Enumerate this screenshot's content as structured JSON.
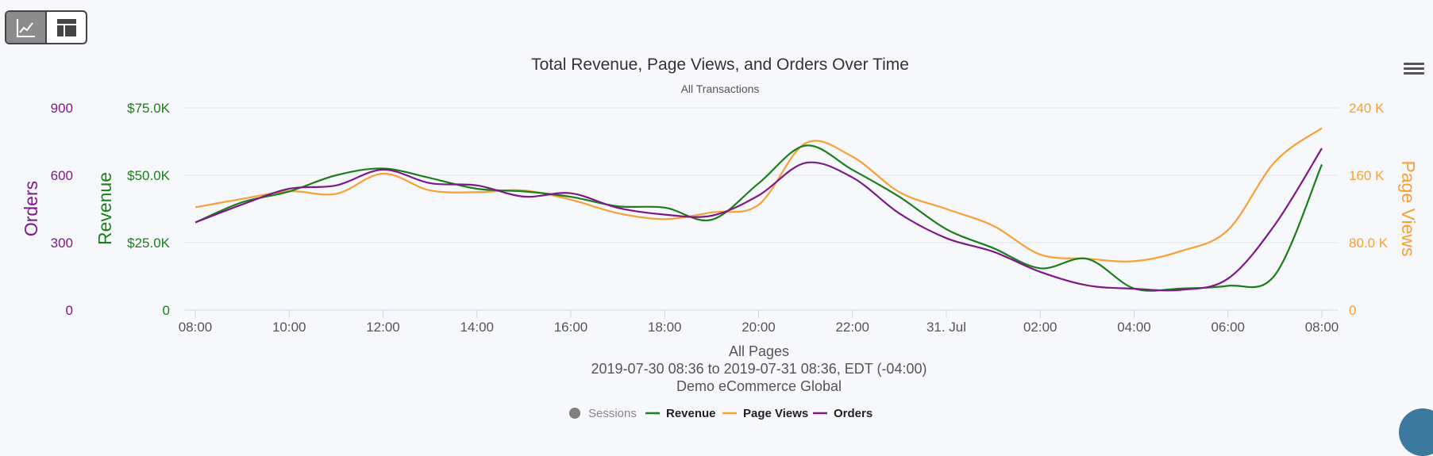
{
  "toolbar": {
    "chart_view_icon": "line-chart-icon",
    "table_view_icon": "table-icon"
  },
  "menu_icon": "hamburger-menu-icon",
  "colors": {
    "revenue": "#1a7f1a",
    "page_views": "#f7a035",
    "orders": "#7d1a86",
    "sessions": "#7f7f7f",
    "grid": "#e1e4ea",
    "text": "#333333"
  },
  "chart_data": {
    "type": "line",
    "title": "Total Revenue, Page Views, and Orders Over Time",
    "subtitle": "All Transactions",
    "caption": [
      "All Pages",
      "2019-07-30 08:36 to 2019-07-31 08:36, EDT (-04:00)",
      "Demo eCommerce Global"
    ],
    "x_ticks": [
      "08:00",
      "10:00",
      "12:00",
      "14:00",
      "16:00",
      "18:00",
      "20:00",
      "22:00",
      "31. Jul",
      "02:00",
      "04:00",
      "06:00",
      "08:00"
    ],
    "x_hours": [
      0,
      1,
      2,
      3,
      4,
      5,
      6,
      7,
      8,
      9,
      10,
      11,
      12,
      13,
      14,
      15,
      16,
      17,
      18,
      19,
      20,
      21,
      22,
      23,
      24
    ],
    "axes": {
      "orders": {
        "title": "Orders",
        "ticks": [
          "0",
          "300",
          "600",
          "900"
        ],
        "range": [
          0,
          900
        ],
        "side": "left"
      },
      "revenue": {
        "title": "Revenue",
        "ticks": [
          "0",
          "$25.0K",
          "$50.0K",
          "$75.0K"
        ],
        "range": [
          0,
          75000
        ],
        "side": "left"
      },
      "page_views": {
        "title": "Page Views",
        "ticks": [
          "0",
          "80.0 K",
          "160 K",
          "240 K"
        ],
        "range": [
          0,
          240000
        ],
        "side": "right"
      }
    },
    "series": [
      {
        "name": "Revenue",
        "axis": "revenue",
        "values": [
          32500,
          40000,
          44000,
          50000,
          52500,
          49000,
          45000,
          44000,
          42000,
          38500,
          38000,
          33500,
          47000,
          61000,
          52000,
          42000,
          30000,
          23000,
          15500,
          19000,
          8000,
          8000,
          9000,
          13000,
          54000
        ]
      },
      {
        "name": "Page Views",
        "axis": "page_views",
        "values": [
          122000,
          132000,
          141000,
          138000,
          162000,
          142000,
          140000,
          142000,
          131000,
          115000,
          108000,
          116000,
          125000,
          198000,
          182000,
          140000,
          120000,
          100000,
          66000,
          61000,
          58000,
          70000,
          95000,
          176000,
          216000
        ]
      },
      {
        "name": "Orders",
        "axis": "orders",
        "values": [
          390,
          470,
          540,
          555,
          625,
          565,
          555,
          505,
          520,
          455,
          425,
          420,
          510,
          655,
          590,
          430,
          320,
          260,
          170,
          110,
          95,
          90,
          140,
          380,
          720
        ]
      },
      {
        "name": "Sessions",
        "axis": "none",
        "hidden": true,
        "values": []
      }
    ],
    "legend": {
      "placement": "bottom-center",
      "items": [
        "Sessions",
        "Revenue",
        "Page Views",
        "Orders"
      ]
    }
  }
}
